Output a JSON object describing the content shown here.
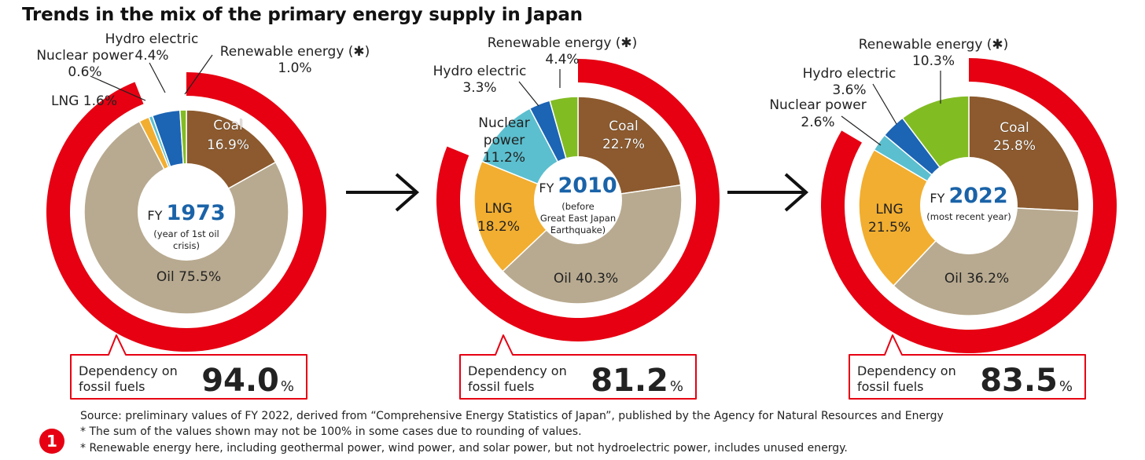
{
  "title": "Trends in the mix of the primary energy supply in Japan",
  "colors": {
    "fossil_ring": "#e60012",
    "coal": "#8c5a2e",
    "oil": "#b8aa90",
    "lng": "#f2ae30",
    "nuclear": "#5bbfcf",
    "hydro": "#1c64b4",
    "renewable": "#82bc23",
    "fy_number": "#1a63a8",
    "callout_border": "#e60012"
  },
  "chart_data": [
    {
      "type": "pie",
      "fy_label": "FY",
      "fy": "1973",
      "fy_note": [
        "(year of 1st oil",
        "crisis)"
      ],
      "fossil_dependency": 94.0,
      "callout": {
        "label_line1": "Dependency on",
        "label_line2": "fossil fuels",
        "value": "94.0",
        "unit": "%"
      },
      "slices": [
        {
          "name": "Coal",
          "value": 16.9,
          "label": "Coal",
          "value_label": "16.9%",
          "color": "#8c5a2e"
        },
        {
          "name": "Oil",
          "value": 75.5,
          "label": "Oil 75.5%",
          "value_label": "",
          "color": "#b8aa90"
        },
        {
          "name": "LNG",
          "value": 1.6,
          "label": "LNG 1.6%",
          "value_label": "",
          "color": "#f2ae30"
        },
        {
          "name": "Nuclear power",
          "value": 0.6,
          "label": "Nuclear power",
          "value_label": "0.6%",
          "color": "#5bbfcf"
        },
        {
          "name": "Hydro electric",
          "value": 4.4,
          "label": "Hydro electric",
          "value_label": "4.4%",
          "color": "#1c64b4"
        },
        {
          "name": "Renewable energy",
          "value": 1.0,
          "label": "Renewable energy (✱)",
          "value_label": "1.0%",
          "color": "#82bc23"
        }
      ]
    },
    {
      "type": "pie",
      "fy_label": "FY",
      "fy": "2010",
      "fy_note": [
        "(before",
        "Great East Japan",
        "Earthquake)"
      ],
      "fossil_dependency": 81.2,
      "callout": {
        "label_line1": "Dependency on",
        "label_line2": "fossil fuels",
        "value": "81.2",
        "unit": "%"
      },
      "slices": [
        {
          "name": "Coal",
          "value": 22.7,
          "label": "Coal",
          "value_label": "22.7%",
          "color": "#8c5a2e"
        },
        {
          "name": "Oil",
          "value": 40.3,
          "label": "Oil 40.3%",
          "value_label": "",
          "color": "#b8aa90"
        },
        {
          "name": "LNG",
          "value": 18.2,
          "label": "LNG",
          "value_label": "18.2%",
          "color": "#f2ae30"
        },
        {
          "name": "Nuclear power",
          "value": 11.2,
          "label": "Nuclear power",
          "value_label": "11.2%",
          "color": "#5bbfcf"
        },
        {
          "name": "Hydro electric",
          "value": 3.3,
          "label": "Hydro electric",
          "value_label": "3.3%",
          "color": "#1c64b4"
        },
        {
          "name": "Renewable energy",
          "value": 4.4,
          "label": "Renewable energy (✱)",
          "value_label": "4.4%",
          "color": "#82bc23"
        }
      ]
    },
    {
      "type": "pie",
      "fy_label": "FY",
      "fy": "2022",
      "fy_note": [
        "(most recent year)"
      ],
      "fossil_dependency": 83.5,
      "callout": {
        "label_line1": "Dependency on",
        "label_line2": "fossil fuels",
        "value": "83.5",
        "unit": "%"
      },
      "slices": [
        {
          "name": "Coal",
          "value": 25.8,
          "label": "Coal",
          "value_label": "25.8%",
          "color": "#8c5a2e"
        },
        {
          "name": "Oil",
          "value": 36.2,
          "label": "Oil 36.2%",
          "value_label": "",
          "color": "#b8aa90"
        },
        {
          "name": "LNG",
          "value": 21.5,
          "label": "LNG",
          "value_label": "21.5%",
          "color": "#f2ae30"
        },
        {
          "name": "Nuclear power",
          "value": 2.6,
          "label": "Nuclear power",
          "value_label": "2.6%",
          "color": "#5bbfcf"
        },
        {
          "name": "Hydro electric",
          "value": 3.6,
          "label": "Hydro electric",
          "value_label": "3.6%",
          "color": "#1c64b4"
        },
        {
          "name": "Renewable energy",
          "value": 10.3,
          "label": "Renewable energy (✱)",
          "value_label": "10.3%",
          "color": "#82bc23"
        }
      ]
    }
  ],
  "notes": {
    "source": "Source: preliminary values of FY 2022, derived from “Comprehensive Energy Statistics of Japan”, published by the Agency for Natural Resources and Energy",
    "note1": "* The sum of the values shown may not be 100% in some cases due to rounding of values.",
    "note2": "* Renewable energy here, including geothermal power, wind power, and solar power, but not hydroelectric power, includes unused energy."
  },
  "badge": "1"
}
